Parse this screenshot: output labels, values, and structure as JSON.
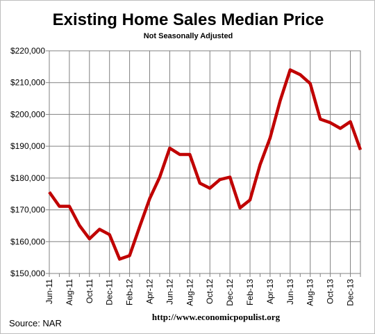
{
  "chart_data": {
    "type": "line",
    "title": "Existing Home Sales Median Price",
    "subtitle": "Not Seasonally Adjusted",
    "xlabel": "",
    "ylabel": "",
    "ylim": [
      150000,
      220000
    ],
    "yticks": [
      "$150,000",
      "$160,000",
      "$170,000",
      "$180,000",
      "$190,000",
      "$200,000",
      "$210,000",
      "$220,000"
    ],
    "xtick_labels": [
      "Jun-11",
      "Aug-11",
      "Oct-11",
      "Dec-11",
      "Feb-12",
      "Apr-12",
      "Jun-12",
      "Aug-12",
      "Oct-12",
      "Dec-12",
      "Feb-13",
      "Apr-13",
      "Jun-13",
      "Aug-13",
      "Oct-13",
      "Dec-13"
    ],
    "categories": [
      "Jun-11",
      "Jul-11",
      "Aug-11",
      "Sep-11",
      "Oct-11",
      "Nov-11",
      "Dec-11",
      "Jan-12",
      "Feb-12",
      "Mar-12",
      "Apr-12",
      "May-12",
      "Jun-12",
      "Jul-12",
      "Aug-12",
      "Sep-12",
      "Oct-12",
      "Nov-12",
      "Dec-12",
      "Jan-13",
      "Feb-13",
      "Mar-13",
      "Apr-13",
      "May-13",
      "Jun-13",
      "Jul-13",
      "Aug-13",
      "Sep-13",
      "Oct-13",
      "Nov-13",
      "Dec-13",
      "Jan-14"
    ],
    "series": [
      {
        "name": "",
        "color": "#c00000",
        "values": [
          175600,
          171100,
          171100,
          165100,
          160900,
          163900,
          162200,
          154500,
          155600,
          164700,
          173500,
          180300,
          189400,
          187400,
          187400,
          178400,
          176800,
          179500,
          180300,
          170600,
          173100,
          184200,
          192600,
          204300,
          214000,
          212500,
          209700,
          198500,
          197400,
          195600,
          197700,
          188900
        ]
      }
    ],
    "grid": true,
    "legend": "none"
  },
  "footer": {
    "source": "Source:  NAR",
    "url": "http://www.economicpopulist.org"
  }
}
